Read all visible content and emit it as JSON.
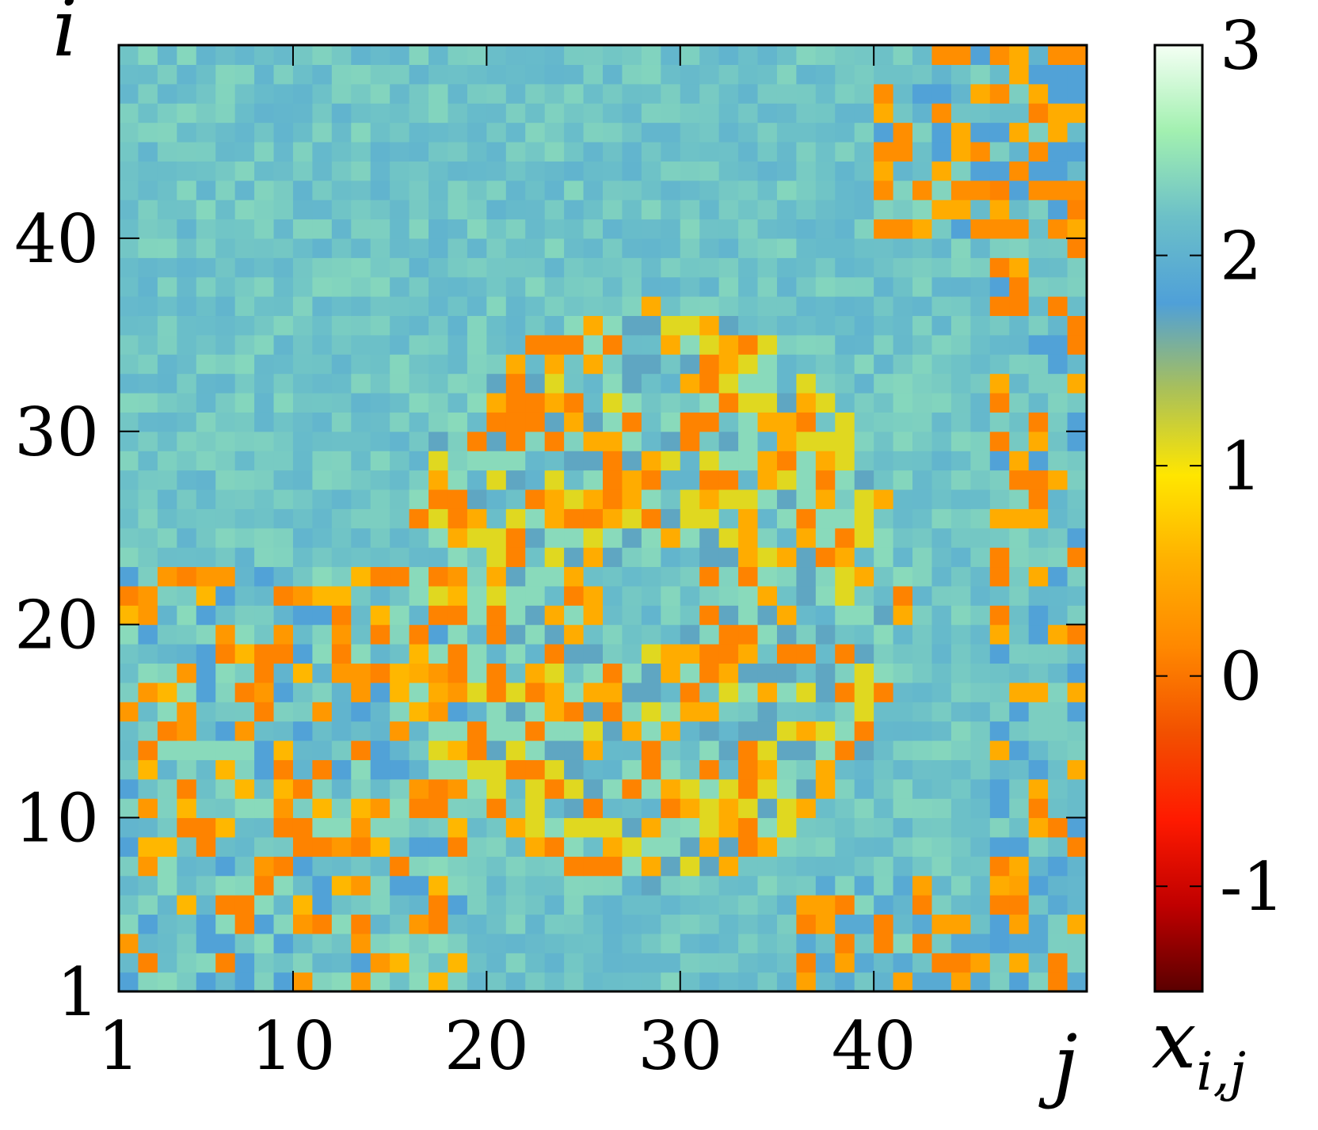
{
  "chart_data": {
    "type": "heatmap",
    "title": "",
    "xlabel": "j",
    "ylabel": "i",
    "colorbar_label_main": "x",
    "colorbar_label_sub": "i,j",
    "x_range": [
      1,
      50
    ],
    "y_range": [
      1,
      49
    ],
    "x_ticks": [
      "1",
      "10",
      "20",
      "30",
      "40"
    ],
    "y_ticks": [
      "1",
      "10",
      "20",
      "30",
      "40"
    ],
    "colorbar": {
      "range": [
        -1.5,
        3
      ],
      "ticks": [
        "3",
        "2",
        "1",
        "0",
        "-1"
      ],
      "palette": [
        "#5a0000",
        "#c00000",
        "#ff1a00",
        "#f25000",
        "#ff8800",
        "#ffb000",
        "#ffe600",
        "#a9c05a",
        "#4fa0d8",
        "#6cc0c8",
        "#a2f0b0",
        "#f4fff4"
      ]
    },
    "grid": false,
    "approximate_regions": {
      "background_value": 2.2,
      "ring_pattern_center": [
        21,
        28
      ],
      "ring_pattern_radius": [
        3,
        15
      ],
      "ring_values": [
        0.1,
        0.5,
        1.1,
        1.7,
        2.4
      ],
      "edge_clusters": [
        {
          "location": "bottom-left quadrant (j 1-18, i 1-22)",
          "values": [
            0.1,
            0.3,
            0.6,
            1.8,
            2.4
          ]
        },
        {
          "location": "right edge (j 45-50)",
          "values": [
            0.1,
            0.5,
            1.8,
            2.3
          ]
        },
        {
          "location": "bottom-right corner (j 36-50, i 1-6)",
          "values": [
            0.1,
            0.4,
            1.9
          ]
        },
        {
          "location": "top-right corner (j 40-50, i 40-49)",
          "values": [
            0.2,
            0.5,
            1.8
          ]
        }
      ]
    }
  }
}
